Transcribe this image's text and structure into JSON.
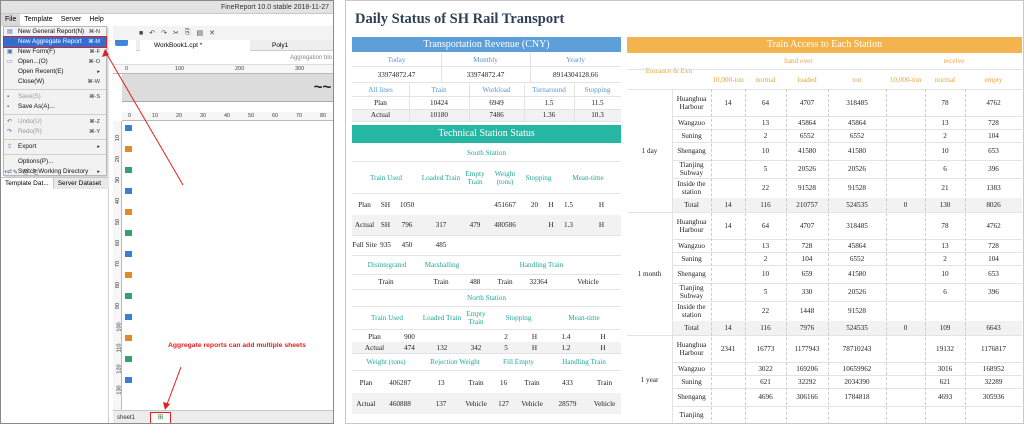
{
  "designer": {
    "window_title": "FineReport 10.0 stable 2018-11-27",
    "menubar": [
      "File",
      "Template",
      "Server",
      "Help"
    ],
    "file_menu": [
      {
        "label": "New General Report(N)",
        "shortcut": "⌘-N",
        "icon": "doc-icon"
      },
      {
        "label": "New Aggregate Report",
        "shortcut": "⌘-M",
        "icon": "aggregate-icon",
        "selected": true
      },
      {
        "label": "New Form(F)",
        "shortcut": "⌘-F",
        "icon": "form-icon"
      },
      {
        "label": "Open...(O)",
        "shortcut": "⌘-O",
        "icon": "folder-icon"
      },
      {
        "label": "Open Recent(E)",
        "shortcut": "▸",
        "icon": ""
      },
      {
        "label": "Close(W)",
        "shortcut": "⌘-W",
        "icon": ""
      },
      {
        "label": "Save(S)",
        "shortcut": "⌘-S",
        "icon": "save-icon",
        "disabled": true
      },
      {
        "label": "Save As(A)...",
        "shortcut": "",
        "icon": "save-as-icon"
      },
      {
        "label": "Undo(U)",
        "shortcut": "⌘-Z",
        "icon": "undo-icon",
        "disabled": true
      },
      {
        "label": "Redo(R)",
        "shortcut": "⌘-Y",
        "icon": "redo-icon",
        "disabled": true
      },
      {
        "label": "Export",
        "shortcut": "▸",
        "icon": "export-icon"
      },
      {
        "label": "Options(P)...",
        "shortcut": "",
        "icon": ""
      },
      {
        "label": "Switch Working Directory",
        "shortcut": "▸",
        "icon": "switch-icon"
      },
      {
        "label": "Exit(X)",
        "shortcut": "",
        "icon": ""
      }
    ],
    "panel_tabs": [
      "Template Dat...",
      "Server Dataset"
    ],
    "doc_tabs": [
      "WorkBook1.cpt *",
      "Poly1"
    ],
    "agg_label": "Aggregation blo",
    "ruler_top": [
      "0",
      "100",
      "200",
      "300"
    ],
    "ruler_second": [
      "0",
      "10",
      "20",
      "30",
      "40",
      "50",
      "60",
      "70",
      "80"
    ],
    "band_text": "~~",
    "vruler_nums": [
      "10",
      "20",
      "30",
      "40",
      "50",
      "60",
      "70",
      "80",
      "90",
      "100",
      "110",
      "120",
      "130"
    ],
    "sheet_tab": "sheet1",
    "add_sheet": "⊞",
    "annotation": "Aggregate reports can add multiple sheets"
  },
  "report": {
    "title": "Daily Status of SH Rail Transport",
    "revenue": {
      "header": "Transportation Revenue (CNY)",
      "cols": [
        "Today",
        "Monthly",
        "Yearly"
      ],
      "totals": [
        "33974872.47",
        "33974872.47",
        "8914304128.66"
      ],
      "sub_headers": [
        "All lines",
        "Train",
        "Workload",
        "Turnaround",
        "Stopping"
      ],
      "rows": [
        [
          "Plan",
          "10424",
          "6949",
          "1.5",
          "11.5"
        ],
        [
          "Actual",
          "10180",
          "7486",
          "1.36",
          "10.3"
        ]
      ]
    },
    "technical": {
      "header": "Technical Station Status",
      "south_label": "South Station",
      "south_headers": [
        "Train Used",
        "Loaded Train",
        "Empty Train",
        "Weight (tons)",
        "Stopping",
        "Mean-time"
      ],
      "south_rows": [
        [
          "Plan",
          "SH",
          "1050",
          "",
          "",
          "451667",
          "20",
          "H",
          "1.5",
          "H"
        ],
        [
          "Actual",
          "SH",
          "796",
          "317",
          "479",
          "480586",
          "",
          "H",
          "1.3",
          "H"
        ],
        [
          "Full Site",
          "935",
          "450",
          "485",
          "",
          "",
          "",
          "",
          "",
          ""
        ]
      ],
      "south_sub_headers": [
        "Disintegrated",
        "Marshalling",
        "Handling Train"
      ],
      "south_sub_row": [
        "Train",
        "Train",
        "488",
        "Train",
        "32364",
        "Vehicle"
      ],
      "north_label": "North Station",
      "north_headers": [
        "Train Used",
        "Loaded Train",
        "Empty Train",
        "Stopping",
        "Mean-time"
      ],
      "north_rows": [
        [
          "Plan",
          "900",
          "",
          "",
          "2",
          "H",
          "1.4",
          "H"
        ],
        [
          "Actual",
          "474",
          "132",
          "342",
          "5",
          "H",
          "1.2",
          "H"
        ]
      ],
      "north_sub_headers": [
        "Weight (tons)",
        "Rejection Weight",
        "Fill Empty",
        "Handling Train"
      ],
      "north_sub_rows": [
        [
          "Plan",
          "406287",
          "13",
          "Train",
          "16",
          "Train",
          "433",
          "Train"
        ],
        [
          "Actual",
          "460888",
          "137",
          "Vehicle",
          "127",
          "Vehicle",
          "28579",
          "Vehicle"
        ]
      ]
    },
    "access": {
      "header": "Train Access to Each Station",
      "entrance_exit": "Entrance & Exit",
      "hand_over": "hand over",
      "receive": "receive",
      "sub_cols": [
        "10,000-ton",
        "normal",
        "loaded",
        "ton",
        "10,000-ton",
        "normal",
        "empty"
      ],
      "periods": [
        {
          "label": "1 day",
          "rows": [
            [
              "Huanghua Harbour",
              "14",
              "64",
              "4707",
              "318485",
              "",
              "78",
              "4762"
            ],
            [
              "Wangzuo",
              "",
              "13",
              "45864",
              "45864",
              "",
              "13",
              "728"
            ],
            [
              "Suning",
              "",
              "2",
              "6552",
              "6552",
              "",
              "2",
              "104"
            ],
            [
              "Shengang",
              "",
              "10",
              "41580",
              "41580",
              "",
              "10",
              "653"
            ],
            [
              "Tianjing Subway",
              "",
              "5",
              "20526",
              "20526",
              "",
              "6",
              "396"
            ],
            [
              "Inside the station",
              "",
              "22",
              "91528",
              "91528",
              "",
              "21",
              "1383"
            ],
            [
              "Total",
              "14",
              "116",
              "210757",
              "524535",
              "0",
              "130",
              "8026"
            ]
          ]
        },
        {
          "label": "1 month",
          "rows": [
            [
              "Huanghua Harbour",
              "14",
              "64",
              "4707",
              "318485",
              "",
              "78",
              "4762"
            ],
            [
              "Wangzuo",
              "",
              "13",
              "728",
              "45864",
              "",
              "13",
              "728"
            ],
            [
              "Suning",
              "",
              "2",
              "104",
              "6552",
              "",
              "2",
              "104"
            ],
            [
              "Shengang",
              "",
              "10",
              "659",
              "41580",
              "",
              "10",
              "653"
            ],
            [
              "Tianjing Subway",
              "",
              "5",
              "330",
              "20526",
              "",
              "6",
              "396"
            ],
            [
              "Inside the station",
              "",
              "22",
              "1448",
              "91528",
              "",
              "",
              ""
            ],
            [
              "Total",
              "14",
              "116",
              "7976",
              "524535",
              "0",
              "109",
              "6643"
            ]
          ]
        },
        {
          "label": "1 year",
          "rows": [
            [
              "Huanghua Harbour",
              "2341",
              "16773",
              "1177943",
              "78710243",
              "",
              "19132",
              "1176817"
            ],
            [
              "Wangzuo",
              "",
              "3022",
              "169206",
              "10659962",
              "",
              "3016",
              "168952"
            ],
            [
              "Suning",
              "",
              "621",
              "32292",
              "2034390",
              "",
              "621",
              "32289"
            ],
            [
              "Shengang",
              "",
              "4696",
              "306166",
              "1784818",
              "",
              "4693",
              "305936"
            ],
            [
              "Tianjing",
              "",
              "",
              "",
              "",
              "",
              "",
              ""
            ]
          ]
        }
      ]
    }
  }
}
